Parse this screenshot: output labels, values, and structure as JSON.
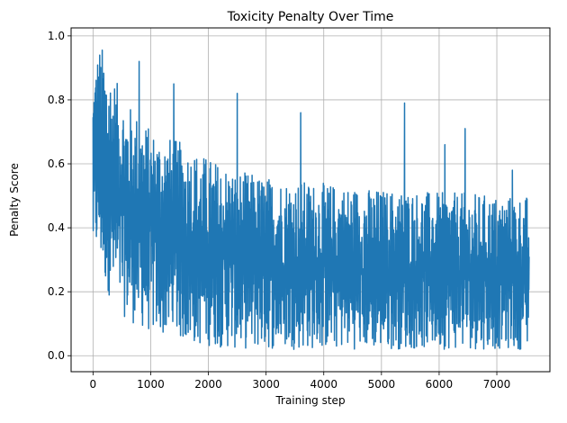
{
  "chart_data": {
    "type": "line",
    "title": "Toxicity Penalty Over Time",
    "xlabel": "Training step",
    "ylabel": "Penalty Score",
    "xlim": [
      -380,
      7920
    ],
    "ylim": [
      -0.05,
      1.025
    ],
    "xticks": [
      0,
      1000,
      2000,
      3000,
      4000,
      5000,
      6000,
      7000
    ],
    "yticks": [
      0.0,
      0.2,
      0.4,
      0.6,
      0.8,
      1.0
    ],
    "xtick_labels": [
      "0",
      "1000",
      "2000",
      "3000",
      "4000",
      "5000",
      "6000",
      "7000"
    ],
    "ytick_labels": [
      "0.0",
      "0.2",
      "0.4",
      "0.6",
      "0.8",
      "1.0"
    ],
    "grid": true,
    "series": [
      {
        "color": "#1f77b4",
        "x": [
          0,
          25,
          50,
          75,
          100,
          150,
          200,
          300,
          400,
          500,
          600,
          700,
          800,
          900,
          1000,
          1200,
          1400,
          1600,
          1800,
          2000,
          2500,
          3000,
          3500,
          4000,
          4500,
          5000,
          5500,
          6000,
          6500,
          7000,
          7500,
          7560
        ],
        "y_upper": [
          0.85,
          0.92,
          0.93,
          0.95,
          0.97,
          0.97,
          0.95,
          0.9,
          0.86,
          0.82,
          0.79,
          0.77,
          0.75,
          0.73,
          0.71,
          0.69,
          0.68,
          0.66,
          0.64,
          0.62,
          0.58,
          0.56,
          0.55,
          0.54,
          0.53,
          0.52,
          0.52,
          0.51,
          0.51,
          0.5,
          0.5,
          0.5
        ],
        "y_lower": [
          0.3,
          0.28,
          0.3,
          0.32,
          0.31,
          0.26,
          0.22,
          0.18,
          0.15,
          0.13,
          0.11,
          0.1,
          0.09,
          0.08,
          0.07,
          0.06,
          0.05,
          0.04,
          0.03,
          0.03,
          0.02,
          0.02,
          0.02,
          0.02,
          0.02,
          0.02,
          0.02,
          0.02,
          0.02,
          0.02,
          0.02,
          0.02
        ],
        "spikes": [
          {
            "x": 800,
            "y": 0.92
          },
          {
            "x": 1400,
            "y": 0.85
          },
          {
            "x": 2500,
            "y": 0.82
          },
          {
            "x": 3600,
            "y": 0.76
          },
          {
            "x": 5400,
            "y": 0.79
          },
          {
            "x": 6450,
            "y": 0.71
          },
          {
            "x": 6100,
            "y": 0.66
          },
          {
            "x": 7270,
            "y": 0.58
          }
        ]
      }
    ]
  }
}
